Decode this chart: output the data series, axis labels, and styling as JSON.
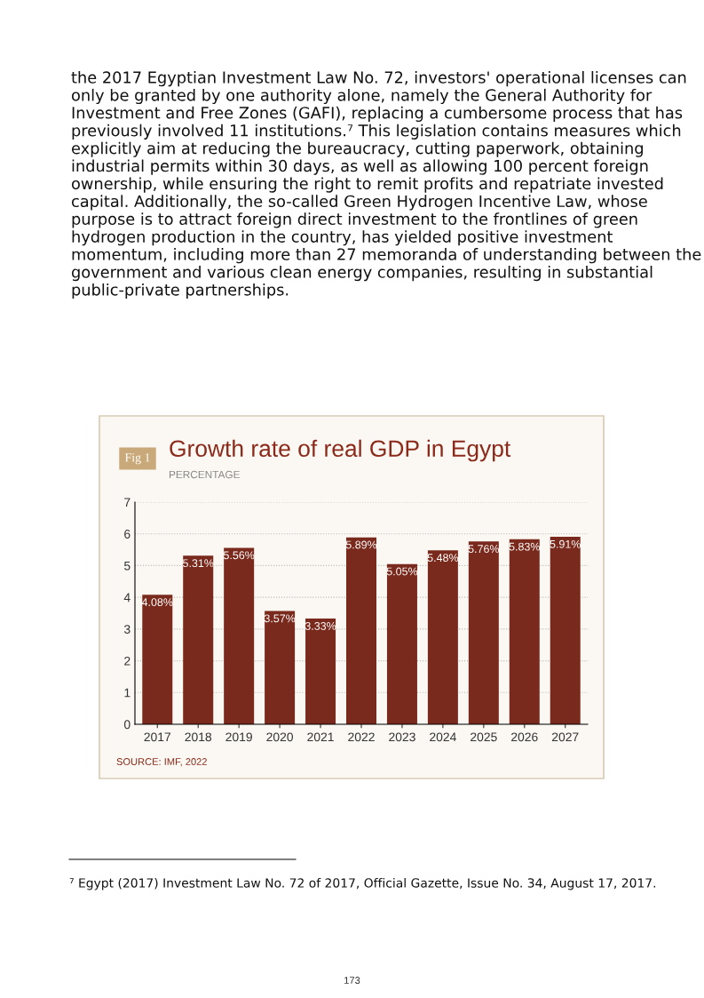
{
  "chart_data": {
    "type": "bar",
    "title": "Growth rate of real GDP in Egypt",
    "subtitle": "PERCENTAGE",
    "categories": [
      "2017",
      "2018",
      "2019",
      "2020",
      "2021",
      "2022",
      "2023",
      "2024",
      "2025",
      "2026",
      "2027"
    ],
    "values": [
      4.08,
      5.31,
      5.56,
      3.57,
      3.33,
      5.89,
      5.05,
      5.48,
      5.76,
      5.83,
      5.91
    ],
    "value_labels": [
      "4.08%",
      "5.31%",
      "5.56%",
      "3.57%",
      "3.33%",
      "5.89%",
      "5.05%",
      "5.48%",
      "5.76%",
      "5.83%",
      "5.91%"
    ],
    "color": "#7a2a1c",
    "ylim": [
      0,
      7
    ],
    "yticks": [
      0,
      1,
      2,
      3,
      4,
      5,
      6,
      7
    ],
    "grid": "y",
    "annotations": [
      "the 2017 Egyptian Investment Law No. 72, investors' operational licenses can only be granted by one authority alone, namely the General Authority for Investment and Free Zones (GAFI), replacing a cumbersome process that has previously involved 11 institutions.⁷ This legislation contains measures which explicitly aim at reducing the bureaucracy, cutting paperwork, obtaining industrial permits within 30 days, as well as allowing 100 percent foreign ownership, while ensuring the right to remit profits and repatriate invested capital. Additionally, the so-called Green Hydrogen Incentive Law, whose purpose is to attract foreign direct investment to the frontlines of green hydrogen production in the country, has yielded positive investment momentum, including more than 27 memoranda of understanding between the government and various clean energy companies, resulting in substantial public-private partnerships.",
      "Fig 1",
      "SOURCE: IMF, 2022",
      "⁷ Egypt (2017) Investment Law No. 72 of 2017, Official Gazette, Issue No. 34, August 17, 2017.",
      "173"
    ]
  }
}
